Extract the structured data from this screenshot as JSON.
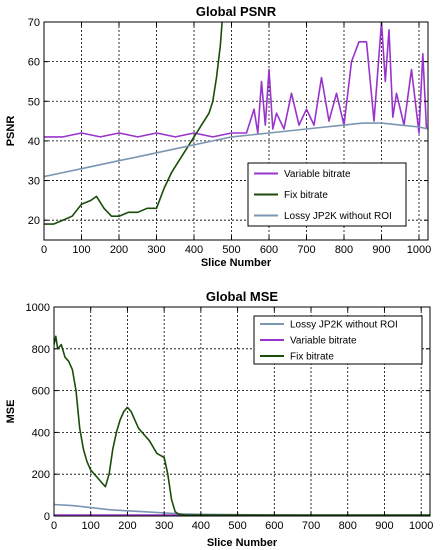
{
  "chart_data": [
    {
      "type": "line",
      "title": "Global PSNR",
      "xlabel": "Slice Number",
      "ylabel": "PSNR",
      "xlim": [
        0,
        1024
      ],
      "ylim": [
        15,
        70
      ],
      "xticks": [
        0,
        100,
        200,
        300,
        400,
        500,
        600,
        700,
        800,
        900,
        1000
      ],
      "yticks": [
        20,
        30,
        40,
        50,
        60,
        70
      ],
      "grid": true,
      "legend_position": "lower-right",
      "series": [
        {
          "name": "Variable bitrate",
          "color": "#9933cc",
          "x": [
            0,
            50,
            100,
            150,
            200,
            250,
            300,
            350,
            400,
            450,
            500,
            540,
            560,
            570,
            580,
            590,
            600,
            610,
            620,
            640,
            660,
            680,
            700,
            720,
            740,
            760,
            780,
            800,
            820,
            840,
            860,
            880,
            900,
            910,
            920,
            930,
            940,
            960,
            980,
            1000,
            1010,
            1020
          ],
          "y": [
            41,
            41,
            42,
            41,
            42,
            41,
            42,
            41,
            42,
            41,
            42,
            42,
            48,
            42,
            55,
            44,
            58,
            43,
            47,
            43,
            52,
            44,
            48,
            44,
            56,
            45,
            52,
            44,
            60,
            65,
            65,
            45,
            70,
            55,
            68,
            46,
            52,
            44,
            58,
            42,
            62,
            43
          ]
        },
        {
          "name": "Fix bitrate",
          "color": "#1a4d0a",
          "x": [
            0,
            25,
            50,
            75,
            100,
            125,
            140,
            160,
            180,
            200,
            225,
            250,
            275,
            300,
            320,
            340,
            360,
            380,
            400,
            420,
            440,
            450,
            460,
            470,
            475
          ],
          "y": [
            19,
            19,
            20,
            21,
            24,
            25,
            26,
            23,
            21,
            21,
            22,
            22,
            23,
            23,
            28,
            32,
            35,
            38,
            41,
            44,
            47,
            50,
            56,
            64,
            70
          ]
        },
        {
          "name": "Lossy JP2K without ROI",
          "color": "#7b96b3",
          "x": [
            0,
            50,
            100,
            150,
            200,
            250,
            300,
            350,
            400,
            450,
            500,
            550,
            600,
            650,
            700,
            750,
            800,
            850,
            900,
            950,
            1000,
            1024
          ],
          "y": [
            31,
            32,
            33,
            34,
            35,
            36,
            37,
            38,
            39,
            40,
            41,
            41.5,
            42,
            42.5,
            43,
            43.5,
            44,
            44.5,
            44.5,
            44,
            43.5,
            43
          ]
        }
      ]
    },
    {
      "type": "line",
      "title": "Global MSE",
      "xlabel": "Slice Number",
      "ylabel": "MSE",
      "xlim": [
        0,
        1024
      ],
      "ylim": [
        0,
        1000
      ],
      "xticks": [
        0,
        100,
        200,
        300,
        400,
        500,
        600,
        700,
        800,
        900,
        1000
      ],
      "yticks": [
        0,
        200,
        400,
        600,
        800,
        1000
      ],
      "grid": true,
      "legend_position": "top-right",
      "series": [
        {
          "name": "Lossy JP2K without ROI",
          "color": "#7b96b3",
          "x": [
            0,
            50,
            100,
            150,
            200,
            250,
            300,
            350,
            400,
            500,
            600,
            700,
            800,
            900,
            1000,
            1024
          ],
          "y": [
            55,
            50,
            40,
            30,
            25,
            20,
            15,
            10,
            8,
            6,
            5,
            4,
            4,
            4,
            4,
            4
          ]
        },
        {
          "name": "Variable bitrate",
          "color": "#9933cc",
          "x": [
            0,
            100,
            200,
            300,
            400,
            500,
            600,
            700,
            800,
            900,
            1000,
            1024
          ],
          "y": [
            5,
            5,
            5,
            5,
            4,
            4,
            3,
            3,
            2,
            2,
            2,
            2
          ]
        },
        {
          "name": "Fix bitrate",
          "color": "#1a4d0a",
          "x": [
            0,
            5,
            10,
            20,
            30,
            40,
            50,
            60,
            70,
            80,
            90,
            100,
            110,
            120,
            130,
            140,
            150,
            160,
            170,
            180,
            190,
            200,
            210,
            220,
            230,
            240,
            250,
            260,
            270,
            280,
            290,
            300,
            310,
            320,
            330,
            340,
            360,
            400,
            500,
            1024
          ],
          "y": [
            820,
            860,
            800,
            820,
            760,
            740,
            700,
            600,
            420,
            320,
            260,
            220,
            200,
            180,
            160,
            140,
            200,
            320,
            400,
            460,
            500,
            520,
            500,
            460,
            420,
            400,
            380,
            360,
            330,
            300,
            290,
            280,
            200,
            80,
            20,
            8,
            5,
            5,
            5,
            5
          ]
        }
      ]
    }
  ]
}
